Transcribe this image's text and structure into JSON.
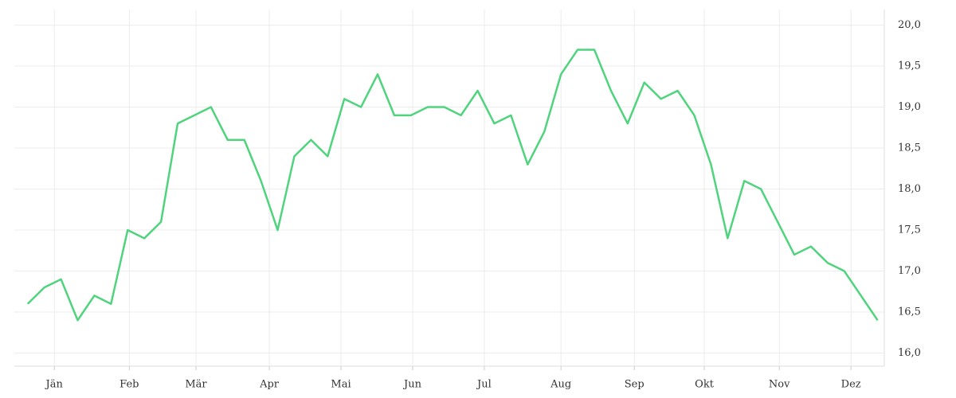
{
  "chart_data": {
    "type": "line",
    "x": [
      1,
      2,
      3,
      4,
      5,
      6,
      7,
      8,
      9,
      10,
      11,
      12,
      13,
      14,
      15,
      16,
      17,
      18,
      19,
      20,
      21,
      22,
      23,
      24,
      25,
      26,
      27,
      28,
      29,
      30,
      31,
      32,
      33,
      34,
      35,
      36,
      37,
      38,
      39,
      40,
      41,
      42,
      43,
      44,
      45,
      46,
      47,
      48,
      49,
      50,
      51,
      52
    ],
    "series": [
      {
        "color": "#4fd47d",
        "values": [
          16.6,
          16.8,
          16.9,
          16.4,
          16.7,
          16.6,
          17.5,
          17.4,
          17.6,
          18.8,
          18.9,
          19.0,
          18.6,
          18.6,
          18.1,
          17.5,
          18.4,
          18.6,
          18.4,
          19.1,
          19.0,
          19.4,
          18.9,
          18.9,
          19.0,
          19.0,
          18.9,
          19.2,
          18.8,
          18.9,
          18.3,
          18.7,
          19.4,
          19.7,
          19.7,
          19.2,
          18.8,
          19.3,
          19.1,
          19.2,
          18.9,
          18.3,
          17.4,
          18.1,
          18.0,
          17.6,
          17.2,
          17.3,
          17.1,
          17.0,
          16.7,
          16.4
        ]
      }
    ],
    "xlim": [
      0.2,
      52.4
    ],
    "xticks": [
      {
        "value": 2.6,
        "label": "Jän"
      },
      {
        "value": 7.1,
        "label": "Feb"
      },
      {
        "value": 11.1,
        "label": "Mär"
      },
      {
        "value": 15.5,
        "label": "Apr"
      },
      {
        "value": 19.8,
        "label": "Mai"
      },
      {
        "value": 24.1,
        "label": "Jun"
      },
      {
        "value": 28.4,
        "label": "Jul"
      },
      {
        "value": 33.0,
        "label": "Aug"
      },
      {
        "value": 37.4,
        "label": "Sep"
      },
      {
        "value": 41.6,
        "label": "Okt"
      },
      {
        "value": 46.1,
        "label": "Nov"
      },
      {
        "value": 50.4,
        "label": "Dez"
      }
    ],
    "ylim": [
      15.84,
      20.19
    ],
    "yticks": [
      {
        "value": 16,
        "label": "16,0"
      },
      {
        "value": 16.5,
        "label": "16,5"
      },
      {
        "value": 17,
        "label": "17,0"
      },
      {
        "value": 17.5,
        "label": "17,5"
      },
      {
        "value": 18,
        "label": "18,0"
      },
      {
        "value": 18.5,
        "label": "18,5"
      },
      {
        "value": 19,
        "label": "19,0"
      },
      {
        "value": 19.5,
        "label": "19,5"
      },
      {
        "value": 20,
        "label": "20,0"
      }
    ],
    "grid": true
  }
}
